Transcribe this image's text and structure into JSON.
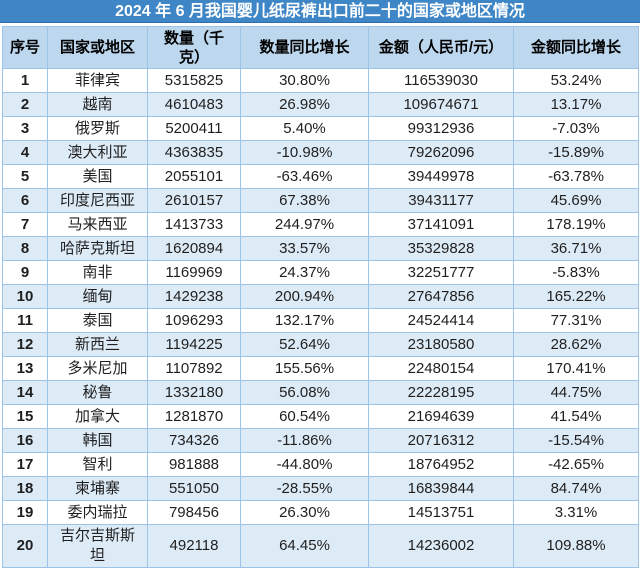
{
  "title": "2024 年 6 月我国婴儿纸尿裤出口前二十的国家或地区情况",
  "colors": {
    "title_bg": "#3E86C6",
    "title_edge": "#2E6DA8",
    "title_fg": "#FFFFFF",
    "header_bg": "#BDD7EE",
    "stripe_bg": "#DDEBF7",
    "border_c": "#9DC3E6",
    "text_c": "#1F1F1F"
  },
  "chart_data": {
    "type": "table",
    "title": "2024 年 6 月我国婴儿纸尿裤出口前二十的国家或地区情况",
    "columns": [
      "序号",
      "国家或地区",
      "数量（千克）",
      "数量同比增长",
      "金额（人民币/元）",
      "金额同比增长"
    ],
    "rows": [
      [
        "1",
        "菲律宾",
        "5315825",
        "30.80%",
        "116539030",
        "53.24%"
      ],
      [
        "2",
        "越南",
        "4610483",
        "26.98%",
        "109674671",
        "13.17%"
      ],
      [
        "3",
        "俄罗斯",
        "5200411",
        "5.40%",
        "99312936",
        "-7.03%"
      ],
      [
        "4",
        "澳大利亚",
        "4363835",
        "-10.98%",
        "79262096",
        "-15.89%"
      ],
      [
        "5",
        "美国",
        "2055101",
        "-63.46%",
        "39449978",
        "-63.78%"
      ],
      [
        "6",
        "印度尼西亚",
        "2610157",
        "67.38%",
        "39431177",
        "45.69%"
      ],
      [
        "7",
        "马来西亚",
        "1413733",
        "244.97%",
        "37141091",
        "178.19%"
      ],
      [
        "8",
        "哈萨克斯坦",
        "1620894",
        "33.57%",
        "35329828",
        "36.71%"
      ],
      [
        "9",
        "南非",
        "1169969",
        "24.37%",
        "32251777",
        "-5.83%"
      ],
      [
        "10",
        "缅甸",
        "1429238",
        "200.94%",
        "27647856",
        "165.22%"
      ],
      [
        "11",
        "泰国",
        "1096293",
        "132.17%",
        "24524414",
        "77.31%"
      ],
      [
        "12",
        "新西兰",
        "1194225",
        "52.64%",
        "23180580",
        "28.62%"
      ],
      [
        "13",
        "多米尼加",
        "1107892",
        "155.56%",
        "22480154",
        "170.41%"
      ],
      [
        "14",
        "秘鲁",
        "1332180",
        "56.08%",
        "22228195",
        "44.75%"
      ],
      [
        "15",
        "加拿大",
        "1281870",
        "60.54%",
        "21694639",
        "41.54%"
      ],
      [
        "16",
        "韩国",
        "734326",
        "-11.86%",
        "20716312",
        "-15.54%"
      ],
      [
        "17",
        "智利",
        "981888",
        "-44.80%",
        "18764952",
        "-42.65%"
      ],
      [
        "18",
        "柬埔寨",
        "551050",
        "-28.55%",
        "16839844",
        "84.74%"
      ],
      [
        "19",
        "委内瑞拉",
        "798456",
        "26.30%",
        "14513751",
        "3.31%"
      ],
      [
        "20",
        "吉尔吉斯斯坦",
        "492118",
        "64.45%",
        "14236002",
        "109.88%"
      ]
    ]
  }
}
